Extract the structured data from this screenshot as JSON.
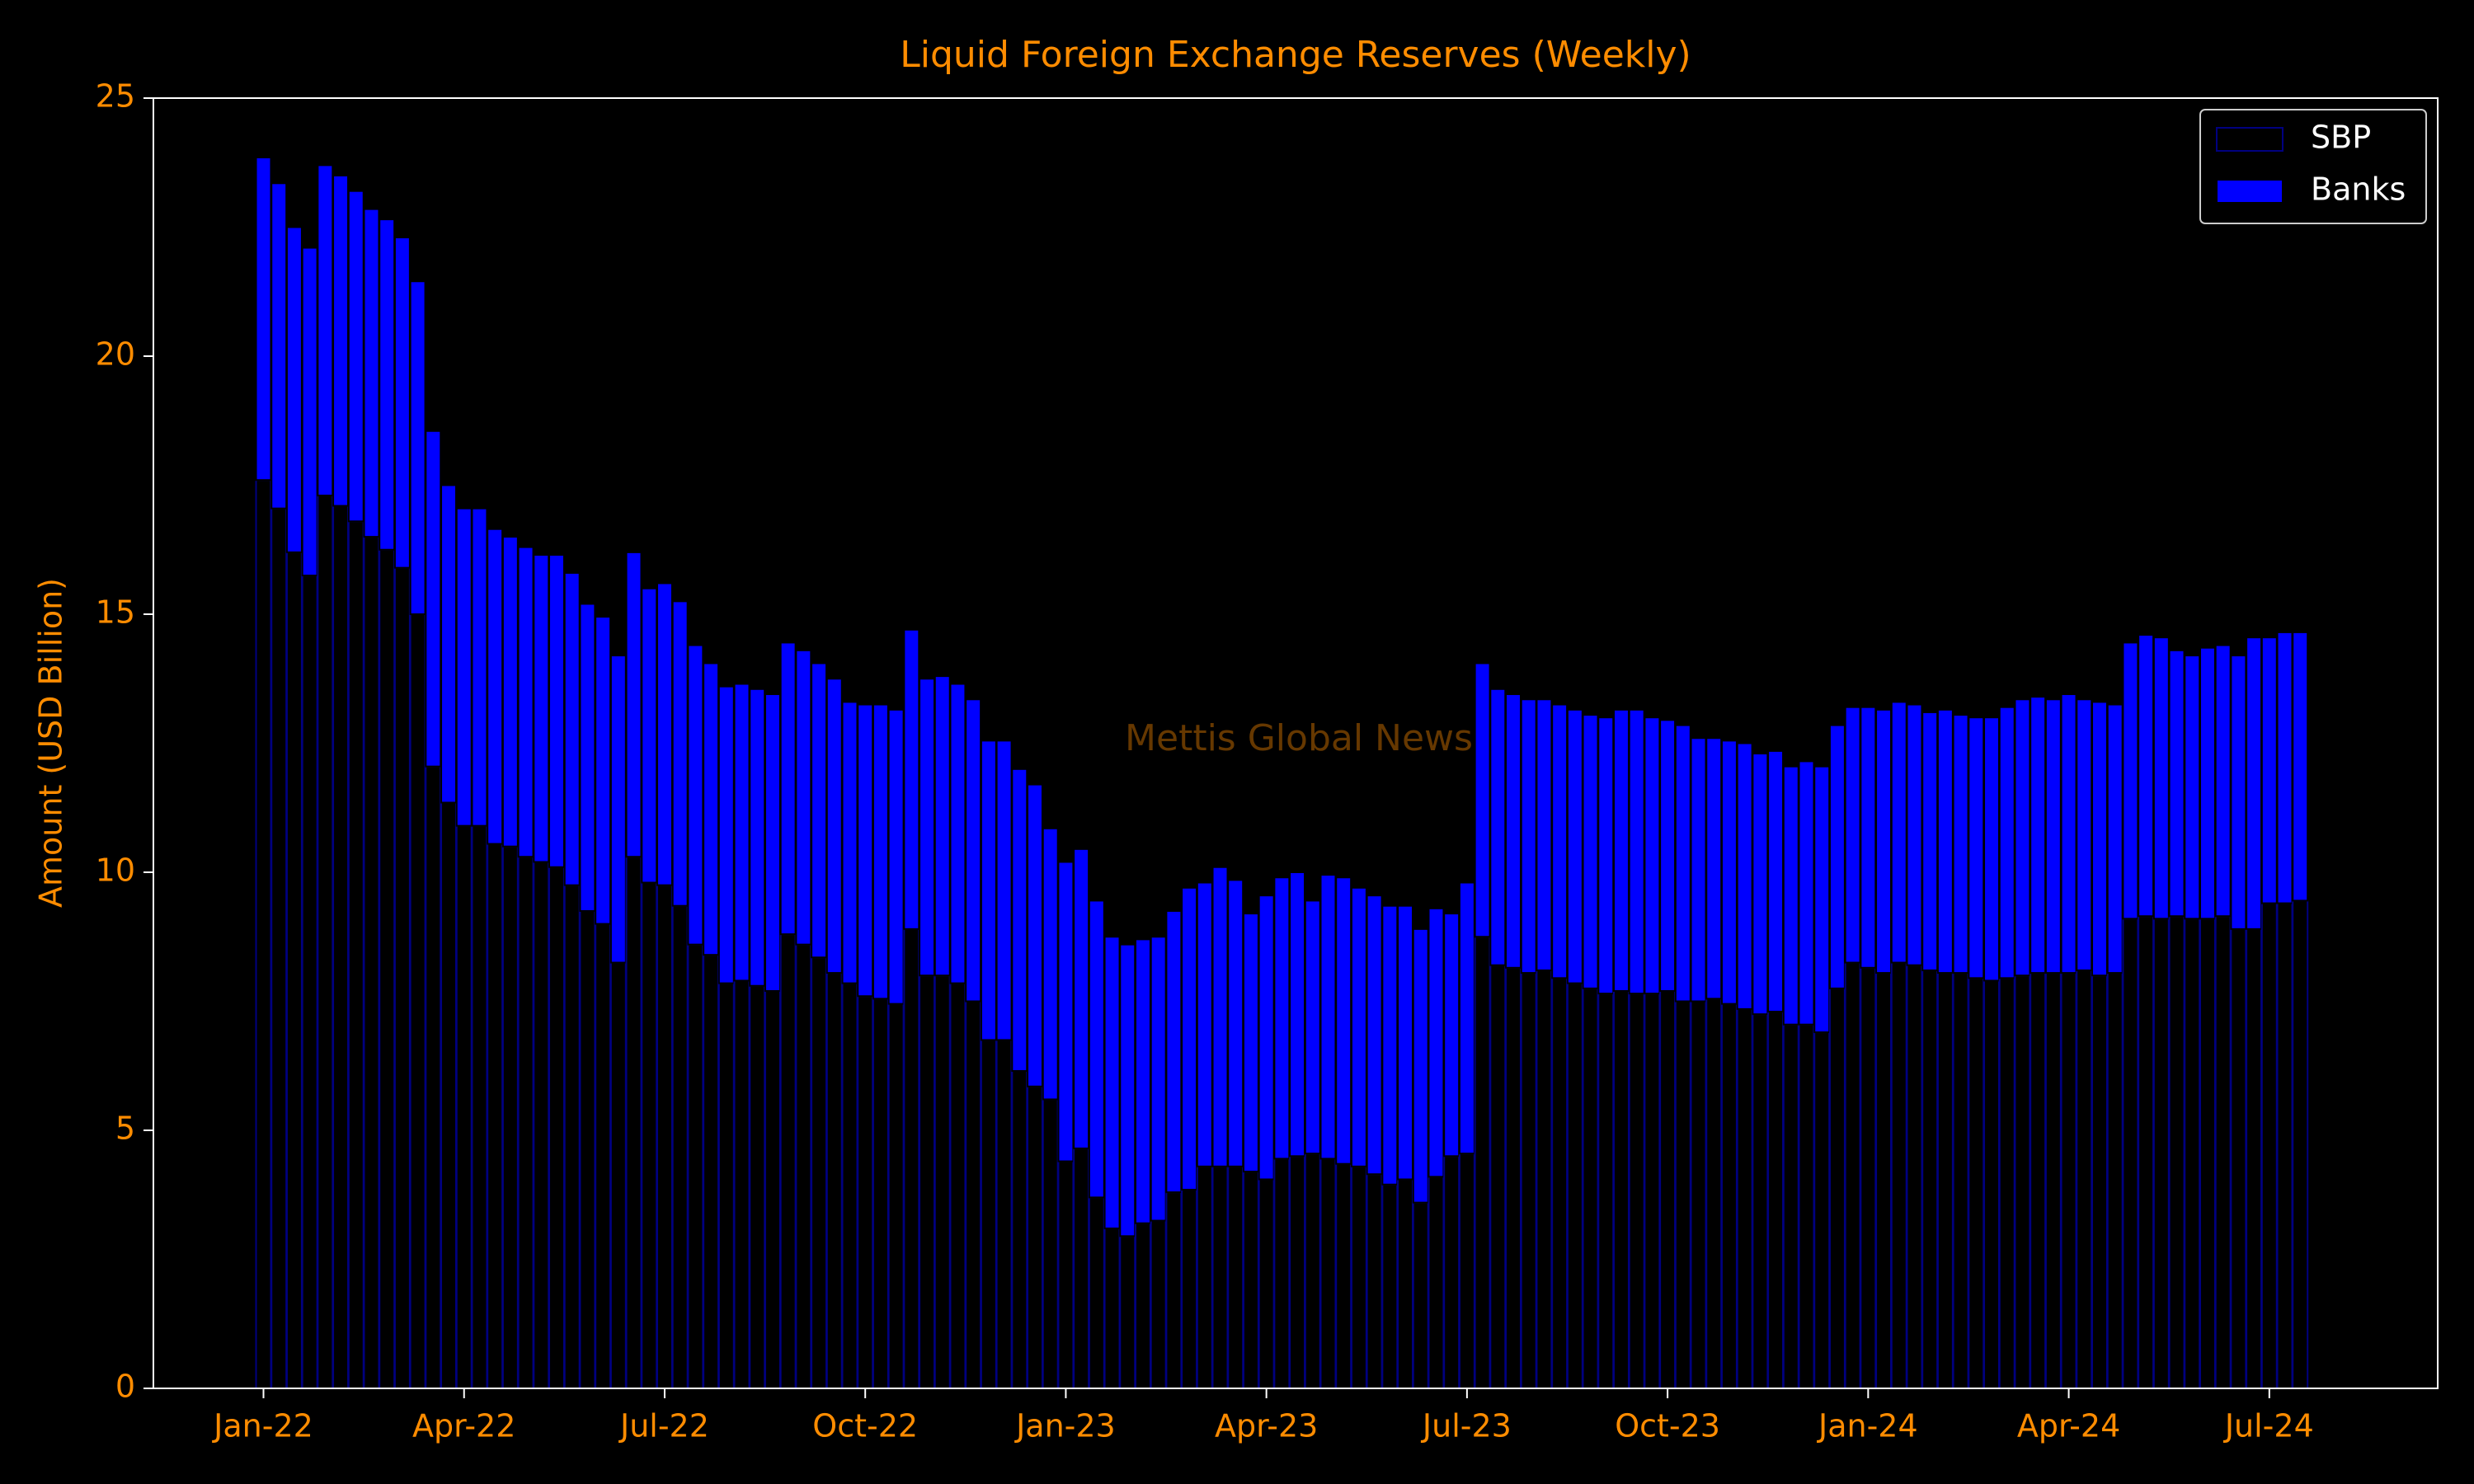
{
  "chart_data": {
    "type": "stacked_bar",
    "title": "Liquid Foreign Exchange Reserves (Weekly)",
    "y_label": "Amount (USD Billion)",
    "watermark": "Mettis Global News",
    "legend": "upper right",
    "ylim": [
      0,
      25
    ],
    "yticks": [
      0,
      5,
      10,
      15,
      20,
      25
    ],
    "categories": [
      "Jan-22",
      null,
      null,
      null,
      null,
      null,
      null,
      null,
      null,
      null,
      null,
      null,
      null,
      "Apr-22",
      null,
      null,
      null,
      null,
      null,
      null,
      null,
      null,
      null,
      null,
      null,
      null,
      "Jul-22",
      null,
      null,
      null,
      null,
      null,
      null,
      null,
      null,
      null,
      null,
      null,
      null,
      "Oct-22",
      null,
      null,
      null,
      null,
      null,
      null,
      null,
      null,
      null,
      null,
      null,
      null,
      "Jan-23",
      null,
      null,
      null,
      null,
      null,
      null,
      null,
      null,
      null,
      null,
      null,
      null,
      "Apr-23",
      null,
      null,
      null,
      null,
      null,
      null,
      null,
      null,
      null,
      null,
      null,
      null,
      "Jul-23",
      null,
      null,
      null,
      null,
      null,
      null,
      null,
      null,
      null,
      null,
      null,
      null,
      "Oct-23",
      null,
      null,
      null,
      null,
      null,
      null,
      null,
      null,
      null,
      null,
      null,
      null,
      "Jan-24",
      null,
      null,
      null,
      null,
      null,
      null,
      null,
      null,
      null,
      null,
      null,
      null,
      "Apr-24",
      null,
      null,
      null,
      null,
      null,
      null,
      null,
      null,
      null,
      null,
      null,
      null,
      "Jul-24",
      null,
      null
    ],
    "series": [
      {
        "name": "SBP",
        "color": "#000000",
        "edgecolor": "#000080",
        "values": [
          17.6,
          17.05,
          16.2,
          15.75,
          17.3,
          17.1,
          16.8,
          16.5,
          16.25,
          15.9,
          15.0,
          12.05,
          11.35,
          10.9,
          10.9,
          10.55,
          10.5,
          10.3,
          10.2,
          10.1,
          9.75,
          9.25,
          9.0,
          8.25,
          10.3,
          9.8,
          9.75,
          9.35,
          8.6,
          8.4,
          7.85,
          7.9,
          7.8,
          7.7,
          8.8,
          8.6,
          8.35,
          8.05,
          7.85,
          7.6,
          7.55,
          7.45,
          8.9,
          8.0,
          8.0,
          7.85,
          7.5,
          6.75,
          6.75,
          6.15,
          5.85,
          5.6,
          4.4,
          4.65,
          3.7,
          3.1,
          2.95,
          3.2,
          3.25,
          3.8,
          3.85,
          4.3,
          4.3,
          4.3,
          4.2,
          4.05,
          4.45,
          4.5,
          4.55,
          4.45,
          4.35,
          4.3,
          4.15,
          3.95,
          4.05,
          3.6,
          4.1,
          4.5,
          4.55,
          8.75,
          8.2,
          8.15,
          8.05,
          8.1,
          7.95,
          7.85,
          7.75,
          7.65,
          7.7,
          7.65,
          7.65,
          7.7,
          7.5,
          7.5,
          7.55,
          7.45,
          7.35,
          7.25,
          7.3,
          7.05,
          7.05,
          6.9,
          7.75,
          8.25,
          8.15,
          8.05,
          8.25,
          8.2,
          8.1,
          8.05,
          8.05,
          7.95,
          7.9,
          7.95,
          8.0,
          8.05,
          8.05,
          8.05,
          8.1,
          8.0,
          8.05,
          9.1,
          9.15,
          9.1,
          9.15,
          9.1,
          9.1,
          9.15,
          8.9,
          8.9,
          9.4,
          9.4,
          9.45
        ]
      },
      {
        "name": "Banks",
        "color": "#0000ff",
        "edgecolor": "#000000",
        "values": [
          6.25,
          6.3,
          6.3,
          6.35,
          6.4,
          6.4,
          6.4,
          6.35,
          6.4,
          6.4,
          6.45,
          6.5,
          6.15,
          6.15,
          6.15,
          6.1,
          6.0,
          6.0,
          5.95,
          6.05,
          6.05,
          5.95,
          5.95,
          5.95,
          5.9,
          5.7,
          5.85,
          5.9,
          5.8,
          5.65,
          5.75,
          5.75,
          5.75,
          5.75,
          5.65,
          5.7,
          5.7,
          5.7,
          5.45,
          5.65,
          5.7,
          5.7,
          5.8,
          5.75,
          5.8,
          5.8,
          5.85,
          5.8,
          5.8,
          5.85,
          5.85,
          5.25,
          5.8,
          5.8,
          5.75,
          5.65,
          5.65,
          5.5,
          5.5,
          5.45,
          5.85,
          5.5,
          5.8,
          5.55,
          5.0,
          5.5,
          5.45,
          5.5,
          4.9,
          5.5,
          5.55,
          5.4,
          5.4,
          5.4,
          5.3,
          5.3,
          5.2,
          4.7,
          5.25,
          5.3,
          5.35,
          5.3,
          5.3,
          5.25,
          5.3,
          5.3,
          5.3,
          5.35,
          5.45,
          5.5,
          5.35,
          5.25,
          5.35,
          5.1,
          5.05,
          5.1,
          5.15,
          5.05,
          5.05,
          5.0,
          5.1,
          5.15,
          5.1,
          4.95,
          5.05,
          5.1,
          5.05,
          5.05,
          5.0,
          5.1,
          5.0,
          5.05,
          5.1,
          5.25,
          5.35,
          5.35,
          5.3,
          5.4,
          5.25,
          5.3,
          5.2,
          5.35,
          5.45,
          5.45,
          5.15,
          5.1,
          5.25,
          5.25,
          5.3,
          5.65,
          5.15,
          5.25,
          5.2
        ]
      }
    ]
  }
}
